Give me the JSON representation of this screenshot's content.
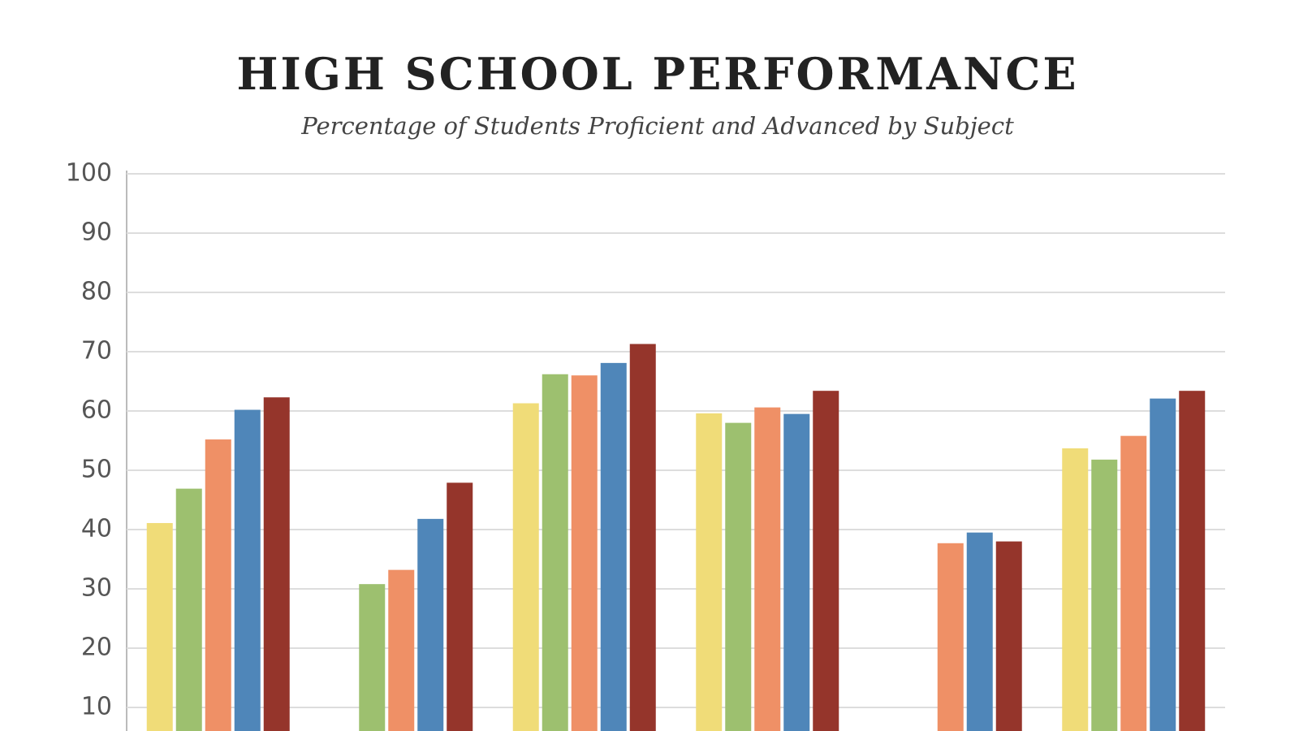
{
  "chart_data": {
    "type": "bar",
    "title": "HIGH SCHOOL PERFORMANCE",
    "subtitle": "Percentage of Students Proficient and Advanced by Subject",
    "categories": [
      null,
      null,
      null,
      null,
      null,
      null
    ],
    "series": [
      {
        "color": "#f0dc78",
        "values": [
          41.1,
          null,
          61.3,
          59.6,
          null,
          53.7
        ]
      },
      {
        "color": "#9dc06f",
        "values": [
          46.9,
          30.8,
          66.2,
          58.0,
          null,
          51.8
        ]
      },
      {
        "color": "#ef9066",
        "values": [
          55.2,
          33.2,
          66.0,
          60.6,
          37.7,
          55.8
        ]
      },
      {
        "color": "#4f86b9",
        "values": [
          60.2,
          41.8,
          68.1,
          59.5,
          39.5,
          62.1
        ]
      },
      {
        "color": "#95352b",
        "values": [
          62.3,
          47.9,
          71.3,
          63.4,
          38.0,
          63.4
        ]
      }
    ],
    "ylim": [
      0,
      100
    ],
    "yticks": [
      10,
      20,
      30,
      40,
      50,
      60,
      70,
      80,
      90,
      100
    ],
    "grid": true
  }
}
